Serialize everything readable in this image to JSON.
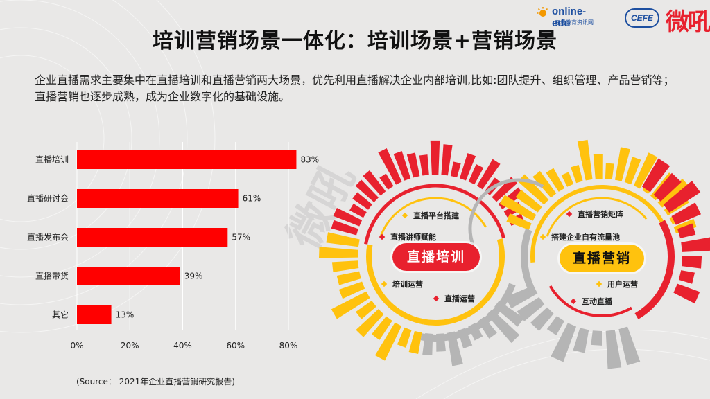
{
  "title": "培训营销场景一体化：培训场景+营销场景",
  "intro": "企业直播需求主要集中在直播培训和直播营销两大场景，优先利用直播解决企业内部培训,比如:团队提升、组织管理、产品营销等；直播营销也逐步成熟，成为企业数字化的基础设施。",
  "logos": {
    "brand": "online-edu",
    "brand_sub": "在线教育资讯网",
    "cefe": "CEFE",
    "weixue": "微吼"
  },
  "watermark": "微吼",
  "chart_data": {
    "type": "bar",
    "orientation": "horizontal",
    "categories": [
      "直播培训",
      "直播研讨会",
      "直播发布会",
      "直播带货",
      "其它"
    ],
    "values": [
      83,
      61,
      57,
      39,
      13
    ],
    "value_labels": [
      "83%",
      "61%",
      "57%",
      "39%",
      "13%"
    ],
    "xticks": [
      "0%",
      "20%",
      "40%",
      "60%",
      "80%"
    ],
    "xlim": [
      0,
      80
    ],
    "grid": true,
    "bar_color": "#ff0000"
  },
  "source": "(Source： 2021年企业直播营销研究报告)",
  "scenes": {
    "training": {
      "label": "直播培训",
      "items": [
        {
          "text": "直播平台搭建",
          "color": "yellow"
        },
        {
          "text": "直播讲师赋能",
          "color": "red"
        },
        {
          "text": "培训运营",
          "color": "yellow"
        },
        {
          "text": "直播运营",
          "color": "red"
        }
      ]
    },
    "marketing": {
      "label": "直播营销",
      "items": [
        {
          "text": "直播营销矩阵",
          "color": "red"
        },
        {
          "text": "搭建企业自有流量池",
          "color": "yellow"
        },
        {
          "text": "用户运营",
          "color": "yellow"
        },
        {
          "text": "互动直播",
          "color": "red"
        }
      ]
    }
  },
  "colors": {
    "red": "#e8212e",
    "yellow": "#ffc20e",
    "gray": "#b5b5b5"
  }
}
